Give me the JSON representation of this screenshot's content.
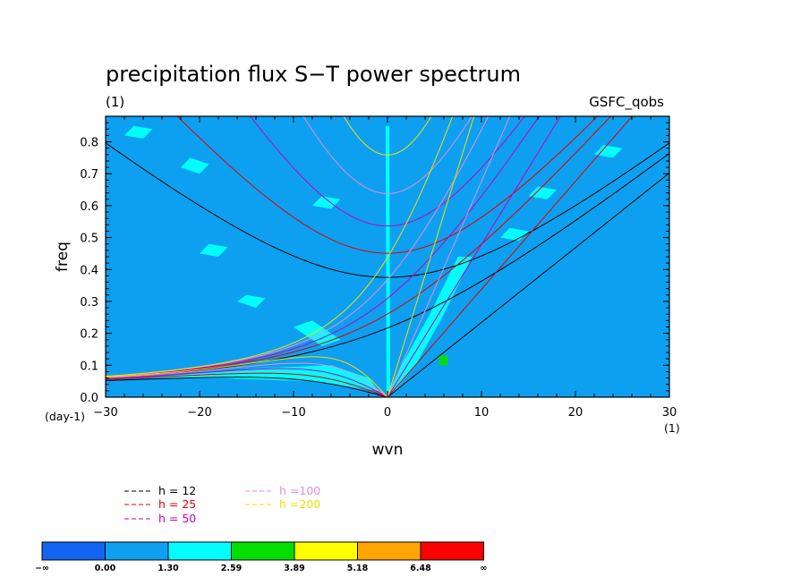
{
  "chart_data": {
    "type": "heatmap",
    "title": "precipitation flux S−T power spectrum",
    "subtitle_units": "(1)",
    "dataset_label": "GSFC_qobs",
    "xlabel": "wvn",
    "ylabel": "freq",
    "x_units": "(1)",
    "y_units": "(day-1)",
    "xlim": [
      -30,
      30
    ],
    "ylim": [
      0,
      0.88
    ],
    "x_ticks": [
      -30,
      -20,
      -10,
      0,
      10,
      20,
      30
    ],
    "x_tick_labels": [
      "−30",
      "−20",
      "−10",
      "0",
      "10",
      "20",
      "30"
    ],
    "y_ticks": [
      0,
      0.1,
      0.2,
      0.3,
      0.4,
      0.5,
      0.6,
      0.7,
      0.8
    ],
    "y_tick_labels": [
      "0.0",
      "0.1",
      "0.2",
      "0.3",
      "0.4",
      "0.5",
      "0.6",
      "0.7",
      "0.8"
    ],
    "background_level_color": "#0da0f0",
    "patches": [
      {
        "level": 2,
        "points": [
          [
            -0.1,
            0.005
          ],
          [
            0.3,
            0.005
          ],
          [
            0.2,
            0.85
          ],
          [
            -0.2,
            0.85
          ]
        ],
        "color": "#00ffff"
      },
      {
        "level": 2,
        "points": [
          [
            -26,
            0.06
          ],
          [
            -14,
            0.09
          ],
          [
            -6,
            0.1
          ],
          [
            -2,
            0.06
          ],
          [
            -1,
            0.02
          ],
          [
            -8,
            0.05
          ],
          [
            -18,
            0.06
          ]
        ],
        "color": "#00ffff"
      },
      {
        "level": 2,
        "points": [
          [
            0.5,
            0.01
          ],
          [
            3,
            0.1
          ],
          [
            6,
            0.26
          ],
          [
            9,
            0.44
          ],
          [
            7.5,
            0.44
          ],
          [
            4.5,
            0.26
          ],
          [
            1.5,
            0.1
          ],
          [
            0,
            0.01
          ]
        ],
        "color": "#00ffff"
      },
      {
        "level": 2,
        "points": [
          [
            -10,
            0.22
          ],
          [
            -7,
            0.16
          ],
          [
            -5,
            0.18
          ],
          [
            -8,
            0.24
          ]
        ],
        "color": "#00ffff"
      },
      {
        "level": 2,
        "points": [
          [
            -16,
            0.3
          ],
          [
            -14,
            0.28
          ],
          [
            -13,
            0.31
          ],
          [
            -15,
            0.32
          ]
        ],
        "color": "#00ffff"
      },
      {
        "level": 2,
        "points": [
          [
            -20,
            0.45
          ],
          [
            -18,
            0.44
          ],
          [
            -17,
            0.47
          ],
          [
            -19,
            0.48
          ]
        ],
        "color": "#00ffff"
      },
      {
        "level": 2,
        "points": [
          [
            -8,
            0.6
          ],
          [
            -6,
            0.59
          ],
          [
            -5,
            0.62
          ],
          [
            -7,
            0.63
          ]
        ],
        "color": "#00ffff"
      },
      {
        "level": 2,
        "points": [
          [
            -22,
            0.72
          ],
          [
            -20,
            0.7
          ],
          [
            -19,
            0.73
          ],
          [
            -21,
            0.75
          ]
        ],
        "color": "#00ffff"
      },
      {
        "level": 2,
        "points": [
          [
            12,
            0.5
          ],
          [
            14,
            0.49
          ],
          [
            15,
            0.52
          ],
          [
            13,
            0.53
          ]
        ],
        "color": "#00ffff"
      },
      {
        "level": 2,
        "points": [
          [
            15,
            0.63
          ],
          [
            17,
            0.62
          ],
          [
            18,
            0.65
          ],
          [
            16,
            0.66
          ]
        ],
        "color": "#00ffff"
      },
      {
        "level": 2,
        "points": [
          [
            22,
            0.76
          ],
          [
            24,
            0.75
          ],
          [
            25,
            0.78
          ],
          [
            23,
            0.79
          ]
        ],
        "color": "#00ffff"
      },
      {
        "level": 2,
        "points": [
          [
            -28,
            0.82
          ],
          [
            -26,
            0.81
          ],
          [
            -25,
            0.84
          ],
          [
            -27,
            0.85
          ]
        ],
        "color": "#00ffff"
      },
      {
        "level": 3,
        "points": [
          [
            5.5,
            0.1
          ],
          [
            6.4,
            0.1
          ],
          [
            6.4,
            0.13
          ],
          [
            5.5,
            0.13
          ]
        ],
        "color": "#00e000"
      }
    ],
    "dispersion_curves": [
      {
        "h": 12,
        "color": "#000000"
      },
      {
        "h": 25,
        "color": "#e00000"
      },
      {
        "h": 50,
        "color": "#c000c0"
      },
      {
        "h": 100,
        "color": "#e08ee0"
      },
      {
        "h": 200,
        "color": "#f0e000"
      }
    ],
    "legend": [
      {
        "label": "h = 12",
        "color": "#000000"
      },
      {
        "label": "h = 25",
        "color": "#e00000"
      },
      {
        "label": "h = 50",
        "color": "#c000c0"
      },
      {
        "label": "h =100",
        "color": "#e08ee0"
      },
      {
        "label": "h =200",
        "color": "#f0e000"
      }
    ],
    "colorbar": {
      "colors": [
        "#1464f4",
        "#0da0f0",
        "#00ffff",
        "#00e000",
        "#ffff00",
        "#ffa500",
        "#ff0000"
      ],
      "labels": [
        "−∞",
        "0.00",
        "1.30",
        "2.59",
        "3.89",
        "5.18",
        "6.48",
        "∞"
      ]
    }
  }
}
